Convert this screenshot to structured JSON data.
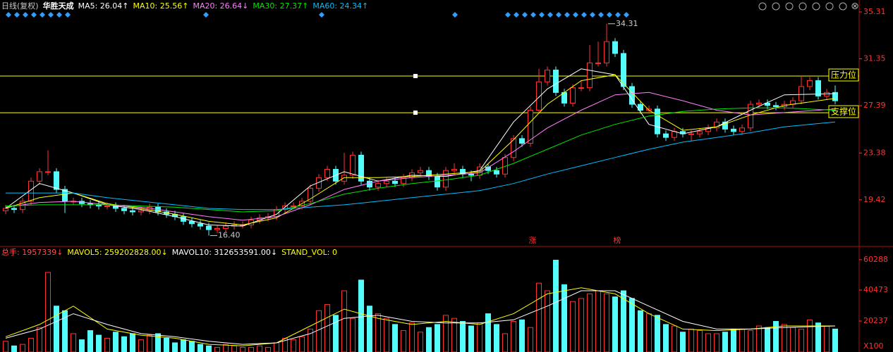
{
  "chart_data": {
    "type": "candlestick",
    "period": "日线(复权)",
    "name": "华胜天成",
    "open": [
      18.5,
      18.7,
      18.6,
      19.3,
      21.0,
      21.8,
      21.8,
      20.3,
      19.3,
      19.3,
      19.1,
      19.0,
      18.9,
      18.9,
      18.7,
      18.5,
      18.4,
      18.5,
      18.8,
      18.4,
      18.2,
      18.0,
      17.6,
      17.4,
      17.2,
      16.9,
      17.0,
      17.2,
      17.3,
      17.3,
      17.7,
      17.9,
      18.0,
      18.6,
      18.9,
      18.9,
      19.3,
      20.4,
      21.3,
      22.0,
      21.0,
      21.5,
      23.2,
      21.0,
      20.5,
      20.8,
      21.0,
      20.8,
      21.3,
      21.7,
      21.9,
      21.4,
      20.5,
      21.9,
      22.0,
      21.6,
      21.5,
      22.2,
      21.9,
      21.6,
      23.0,
      24.6,
      24.2,
      27.0,
      29.4,
      30.4,
      28.5,
      27.6,
      28.9,
      28.9,
      31.0,
      31.0,
      32.8,
      31.8,
      29.0,
      27.5,
      27.0,
      27.1,
      25.0,
      24.7,
      25.2,
      25.0,
      25.0,
      25.2,
      25.5,
      26.0,
      25.4,
      25.2,
      25.5,
      27.5,
      27.6,
      27.4,
      27.3,
      27.5,
      27.8,
      29.0,
      29.5,
      28.2,
      28.5
    ],
    "high": [
      19.0,
      19.0,
      19.6,
      21.3,
      22.1,
      23.6,
      22.1,
      20.6,
      19.6,
      19.6,
      19.4,
      19.3,
      19.2,
      19.2,
      19.0,
      18.8,
      18.8,
      19.1,
      19.1,
      18.7,
      18.5,
      18.3,
      17.9,
      17.7,
      17.5,
      17.3,
      17.5,
      17.6,
      17.6,
      18.0,
      18.2,
      18.3,
      18.9,
      19.2,
      19.2,
      19.6,
      20.7,
      21.6,
      22.3,
      22.3,
      23.4,
      23.5,
      23.5,
      21.3,
      21.1,
      21.3,
      21.3,
      21.6,
      22.0,
      22.2,
      22.2,
      21.7,
      22.2,
      22.5,
      22.3,
      21.9,
      22.5,
      22.5,
      22.2,
      23.3,
      24.9,
      24.9,
      27.3,
      30.5,
      30.7,
      30.7,
      28.8,
      29.2,
      29.5,
      32.5,
      32.8,
      34.31,
      33.1,
      32.1,
      29.3,
      27.8,
      27.4,
      27.4,
      25.3,
      25.5,
      25.5,
      25.3,
      25.5,
      25.8,
      26.3,
      26.3,
      25.7,
      25.8,
      27.8,
      27.9,
      27.9,
      27.7,
      27.8,
      28.1,
      29.9,
      29.8,
      29.8,
      28.8,
      29.1
    ],
    "low": [
      18.2,
      18.3,
      18.3,
      19.0,
      20.7,
      21.5,
      20.0,
      18.3,
      19.0,
      18.8,
      18.7,
      18.6,
      18.6,
      18.4,
      18.2,
      18.1,
      18.1,
      18.2,
      18.1,
      17.9,
      17.7,
      17.3,
      17.1,
      16.9,
      16.4,
      16.6,
      16.7,
      16.9,
      17.0,
      17.0,
      17.4,
      17.6,
      17.7,
      18.3,
      18.6,
      18.6,
      19.0,
      20.1,
      21.0,
      20.7,
      20.7,
      21.2,
      20.7,
      20.2,
      20.2,
      20.5,
      20.5,
      20.5,
      21.0,
      21.4,
      21.1,
      20.2,
      20.2,
      21.6,
      21.3,
      21.0,
      21.2,
      21.6,
      21.3,
      21.3,
      22.7,
      23.9,
      23.9,
      26.7,
      29.1,
      28.2,
      27.3,
      27.3,
      28.6,
      28.6,
      30.7,
      30.7,
      31.5,
      28.7,
      27.2,
      26.7,
      26.7,
      24.7,
      24.4,
      24.4,
      24.7,
      24.4,
      24.7,
      24.9,
      25.2,
      25.1,
      24.9,
      24.9,
      25.2,
      27.2,
      27.1,
      27.0,
      27.0,
      27.2,
      27.5,
      28.7,
      27.9,
      27.9,
      27.5
    ],
    "close": [
      18.7,
      18.6,
      19.3,
      21.0,
      21.8,
      21.8,
      20.3,
      19.3,
      19.3,
      19.1,
      19.0,
      18.9,
      18.9,
      18.7,
      18.5,
      18.4,
      18.5,
      18.8,
      18.4,
      18.2,
      18.0,
      17.6,
      17.4,
      17.2,
      16.9,
      17.0,
      17.2,
      17.3,
      17.3,
      17.7,
      17.9,
      18.0,
      18.6,
      18.9,
      18.9,
      19.3,
      20.4,
      21.3,
      22.0,
      21.0,
      21.5,
      23.2,
      21.0,
      20.5,
      20.8,
      21.0,
      20.8,
      21.3,
      21.7,
      21.9,
      21.4,
      20.5,
      21.9,
      22.0,
      21.6,
      21.5,
      22.2,
      21.9,
      21.6,
      23.0,
      24.6,
      24.2,
      27.0,
      29.4,
      30.4,
      28.5,
      27.6,
      28.9,
      28.9,
      31.0,
      31.0,
      32.8,
      31.8,
      29.0,
      27.5,
      27.0,
      27.1,
      25.0,
      24.7,
      25.2,
      25.0,
      25.0,
      25.2,
      25.5,
      26.0,
      25.4,
      25.2,
      25.5,
      27.5,
      27.6,
      27.4,
      27.3,
      27.5,
      27.8,
      29.0,
      29.5,
      28.2,
      28.5,
      27.8
    ],
    "volume": [
      7000,
      4000,
      5000,
      9000,
      16000,
      52000,
      30000,
      27000,
      12000,
      8000,
      14000,
      11000,
      9000,
      13000,
      10000,
      12000,
      8000,
      11000,
      12000,
      9000,
      6000,
      8000,
      7000,
      5000,
      4000,
      3000,
      5000,
      4000,
      3000,
      3000,
      4000,
      3000,
      6000,
      9000,
      8000,
      10000,
      15000,
      27000,
      31000,
      24000,
      40000,
      22000,
      47000,
      30000,
      25000,
      22000,
      18000,
      14000,
      19000,
      13000,
      16000,
      18000,
      24000,
      22000,
      20000,
      17000,
      19000,
      25000,
      18000,
      12000,
      20000,
      21000,
      16000,
      45000,
      40000,
      60000,
      44000,
      33000,
      35000,
      38000,
      40000,
      38000,
      36000,
      40000,
      35000,
      27000,
      25000,
      24000,
      18000,
      17000,
      13000,
      15000,
      14000,
      12000,
      12000,
      13000,
      15000,
      15000,
      14000,
      17000,
      16000,
      20000,
      18000,
      16000,
      15000,
      21000,
      19000,
      17000,
      15000
    ],
    "up_color": "#ff3232",
    "down_color": "#54fcfc",
    "ylim": [
      15.78,
      36.32
    ],
    "yticks": [
      35.31,
      31.35,
      27.39,
      23.38,
      19.42
    ],
    "volume_ylim": [
      0,
      63000
    ],
    "volume_yticks": [
      60288,
      40473,
      20237
    ],
    "volume_unit": "X100",
    "high_label": "34.31",
    "low_label": "16.40",
    "levels": [
      {
        "value": 29.89,
        "label": "压力位"
      },
      {
        "value": 26.79,
        "label": "支撑位"
      }
    ],
    "level_color": "#ffff00",
    "signals": [
      "涨",
      "榜"
    ],
    "ma_series": [
      {
        "name": "MA5: 26.04↑",
        "color": "#ffffff",
        "x": [
          0,
          4,
          8,
          12,
          16,
          20,
          24,
          28,
          32,
          36,
          40,
          44,
          48,
          52,
          56,
          60,
          64,
          68,
          72,
          76,
          80,
          84,
          88,
          92,
          98
        ],
        "values": [
          18.7,
          20.8,
          20.0,
          19.0,
          18.6,
          18.0,
          17.3,
          17.2,
          18.2,
          20.6,
          21.8,
          21.0,
          21.5,
          21.4,
          21.9,
          26.0,
          28.8,
          30.5,
          30.0,
          25.8,
          25.0,
          25.6,
          27.0,
          28.3,
          28.4
        ]
      },
      {
        "name": "MA10: 25.56↑",
        "color": "#ffff00",
        "x": [
          0,
          4,
          8,
          12,
          16,
          20,
          24,
          28,
          32,
          36,
          40,
          44,
          48,
          52,
          56,
          60,
          64,
          68,
          72,
          76,
          80,
          84,
          88,
          92,
          98
        ],
        "values": [
          18.7,
          19.6,
          20.0,
          19.1,
          18.7,
          18.2,
          17.6,
          17.3,
          17.9,
          19.5,
          21.3,
          21.3,
          21.4,
          21.6,
          21.8,
          24.5,
          27.5,
          29.5,
          30.0,
          27.0,
          25.3,
          25.6,
          26.6,
          27.4,
          28.0
        ]
      },
      {
        "name": "MA20: 26.64↓",
        "color": "#ff80ff",
        "x": [
          0,
          4,
          8,
          12,
          16,
          20,
          24,
          28,
          32,
          36,
          40,
          44,
          48,
          52,
          56,
          60,
          64,
          68,
          72,
          76,
          80,
          84,
          88,
          92,
          98
        ],
        "values": [
          18.8,
          19.2,
          19.3,
          19.0,
          18.8,
          18.4,
          18.0,
          17.7,
          18.0,
          19.0,
          20.3,
          21.0,
          21.3,
          21.5,
          21.7,
          23.5,
          25.5,
          27.0,
          28.3,
          28.5,
          27.8,
          27.0,
          26.6,
          26.8,
          27.1
        ]
      },
      {
        "name": "MA30: 27.37↑",
        "color": "#00e600",
        "x": [
          0,
          4,
          8,
          12,
          16,
          20,
          24,
          28,
          32,
          36,
          40,
          44,
          48,
          52,
          56,
          60,
          64,
          68,
          72,
          76,
          80,
          84,
          88,
          92,
          98
        ],
        "values": [
          18.9,
          19.0,
          19.0,
          19.0,
          18.9,
          18.8,
          18.6,
          18.4,
          18.5,
          19.1,
          19.9,
          20.4,
          20.8,
          21.1,
          21.5,
          22.5,
          23.7,
          24.9,
          25.8,
          26.5,
          26.9,
          27.1,
          27.2,
          27.2,
          27.0
        ]
      },
      {
        "name": "MA60: 24.34↑",
        "color": "#00bfff",
        "x": [
          0,
          4,
          8,
          12,
          16,
          20,
          24,
          28,
          32,
          36,
          40,
          44,
          48,
          52,
          56,
          60,
          64,
          68,
          72,
          76,
          80,
          84,
          88,
          92,
          98
        ],
        "values": [
          20.0,
          20.0,
          20.0,
          19.6,
          19.3,
          19.0,
          18.7,
          18.6,
          18.6,
          18.8,
          19.0,
          19.3,
          19.6,
          19.9,
          20.2,
          20.8,
          21.6,
          22.3,
          23.0,
          23.7,
          24.3,
          24.7,
          25.1,
          25.6,
          26.0
        ]
      }
    ],
    "volume_total_label": {
      "text": "总手: 1957339↓",
      "color": "#ff5050"
    },
    "vol_ma_series": [
      {
        "name": "MAVOL5: 259202828.00↓",
        "color": "#ffff00",
        "x": [
          0,
          4,
          8,
          12,
          16,
          20,
          24,
          28,
          32,
          36,
          40,
          44,
          48,
          52,
          56,
          60,
          64,
          68,
          72,
          76,
          80,
          84,
          88,
          92,
          98
        ],
        "values": [
          10000,
          18000,
          30000,
          15000,
          11000,
          9000,
          5000,
          4000,
          6000,
          17000,
          28000,
          22000,
          18000,
          20000,
          18000,
          25000,
          38000,
          42000,
          38000,
          25000,
          15000,
          14000,
          15000,
          17000,
          17000
        ]
      },
      {
        "name": "MAVOL10: 312653591.00↓",
        "color": "#ffffff",
        "x": [
          0,
          4,
          8,
          12,
          16,
          20,
          24,
          28,
          32,
          36,
          40,
          44,
          48,
          52,
          56,
          60,
          64,
          68,
          72,
          76,
          80,
          84,
          88,
          92,
          98
        ],
        "values": [
          9000,
          15000,
          25000,
          18000,
          12000,
          10000,
          7000,
          5000,
          6000,
          12000,
          22000,
          24000,
          20000,
          19000,
          19000,
          21000,
          30000,
          40000,
          40000,
          30000,
          20000,
          15000,
          15000,
          16000,
          17000
        ]
      }
    ],
    "stand_vol_label": {
      "text": "STAND_VOL: 0",
      "color": "#ffff00"
    }
  }
}
